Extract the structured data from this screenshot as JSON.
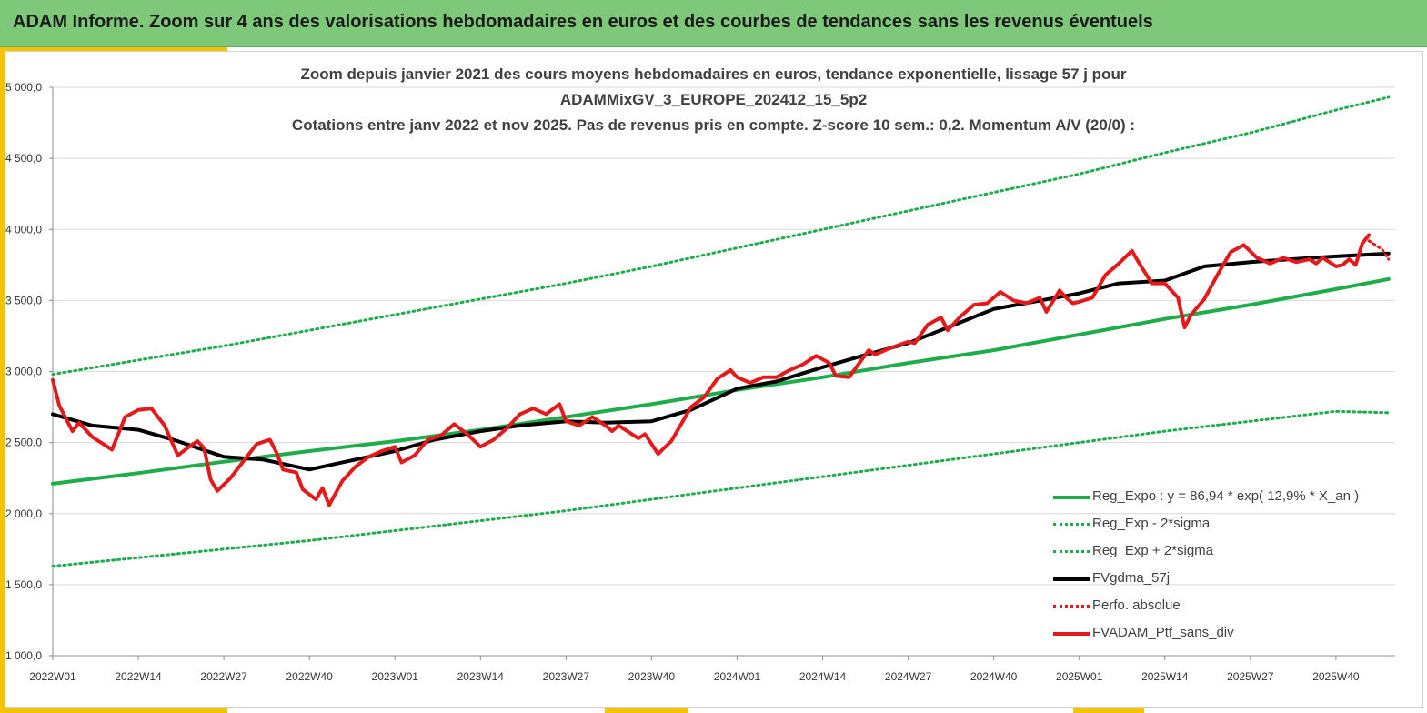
{
  "header": {
    "title": "ADAM Informe. Zoom sur 4 ans des valorisations hebdomadaires en euros et des courbes de tendances sans les revenus éventuels"
  },
  "colors": {
    "header_bg": "#7ec87a",
    "accent": "#f5c400",
    "reg_expo": "#1fad4b",
    "fvgdma": "#000000",
    "ptf": "#e41a1a"
  },
  "chart_data": {
    "type": "line",
    "title_lines": [
      "Zoom depuis janvier 2021 des cours moyens hebdomadaires  en euros, tendance exponentielle, lissage 57 j pour",
      "ADAMMixGV_3_EUROPE_202412_15_5p2",
      "Cotations entre janv 2022 et nov 2025. Pas de revenus pris en compte. Z-score 10 sem.: 0,2. Momentum A/V (20/0) :"
    ],
    "x_tick_labels": [
      "2022W01",
      "2022W14",
      "2022W27",
      "2022W40",
      "2023W01",
      "2023W14",
      "2023W27",
      "2023W40",
      "2024W01",
      "2024W14",
      "2024W27",
      "2024W40",
      "2025W01",
      "2025W14",
      "2025W27",
      "2025W40"
    ],
    "y_tick_labels": [
      "1 000,0",
      "1 500,0",
      "2 000,0",
      "2 500,0",
      "3 000,0",
      "3 500,0",
      "4 000,0",
      "4 500,0",
      "5 000,0"
    ],
    "y_ticks": [
      1000,
      1500,
      2000,
      2500,
      3000,
      3500,
      4000,
      4500,
      5000
    ],
    "ylim": [
      1000,
      5000
    ],
    "grid": "horizontal",
    "legend_position": "bottom-right",
    "series": [
      {
        "name": "Reg_Expo : y = 86,94 * exp( 12,9% *  X_an )",
        "style": "solid",
        "color": "#1fad4b",
        "points": [
          [
            "2022W01",
            2210
          ],
          [
            "2022W14",
            2285
          ],
          [
            "2022W27",
            2365
          ],
          [
            "2022W40",
            2440
          ],
          [
            "2023W01",
            2510
          ],
          [
            "2023W14",
            2590
          ],
          [
            "2023W27",
            2680
          ],
          [
            "2023W40",
            2770
          ],
          [
            "2024W01",
            2870
          ],
          [
            "2024W14",
            2960
          ],
          [
            "2024W27",
            3060
          ],
          [
            "2024W40",
            3150
          ],
          [
            "2025W01",
            3260
          ],
          [
            "2025W14",
            3370
          ],
          [
            "2025W27",
            3470
          ],
          [
            "2025W40",
            3580
          ],
          [
            "2025W48",
            3650
          ]
        ]
      },
      {
        "name": "Reg_Exp - 2*sigma",
        "style": "dotted",
        "color": "#1fad4b",
        "points": [
          [
            "2022W01",
            1630
          ],
          [
            "2022W14",
            1690
          ],
          [
            "2022W27",
            1750
          ],
          [
            "2022W40",
            1810
          ],
          [
            "2023W01",
            1880
          ],
          [
            "2023W14",
            1950
          ],
          [
            "2023W27",
            2020
          ],
          [
            "2023W40",
            2100
          ],
          [
            "2024W01",
            2180
          ],
          [
            "2024W14",
            2260
          ],
          [
            "2024W27",
            2340
          ],
          [
            "2024W40",
            2420
          ],
          [
            "2025W01",
            2500
          ],
          [
            "2025W14",
            2580
          ],
          [
            "2025W27",
            2650
          ],
          [
            "2025W40",
            2720
          ],
          [
            "2025W48",
            2710
          ]
        ]
      },
      {
        "name": "Reg_Exp + 2*sigma",
        "style": "dotted",
        "color": "#1fad4b",
        "points": [
          [
            "2022W01",
            2980
          ],
          [
            "2022W14",
            3080
          ],
          [
            "2022W27",
            3180
          ],
          [
            "2022W40",
            3290
          ],
          [
            "2023W01",
            3400
          ],
          [
            "2023W14",
            3510
          ],
          [
            "2023W27",
            3620
          ],
          [
            "2023W40",
            3740
          ],
          [
            "2024W01",
            3870
          ],
          [
            "2024W14",
            4000
          ],
          [
            "2024W27",
            4130
          ],
          [
            "2024W40",
            4260
          ],
          [
            "2025W01",
            4390
          ],
          [
            "2025W14",
            4540
          ],
          [
            "2025W27",
            4680
          ],
          [
            "2025W40",
            4840
          ],
          [
            "2025W48",
            4930
          ]
        ]
      },
      {
        "name": "FVgdma_57j",
        "style": "solid",
        "color": "#000000",
        "points": [
          [
            "2022W01",
            2700
          ],
          [
            "2022W07",
            2620
          ],
          [
            "2022W14",
            2590
          ],
          [
            "2022W20",
            2510
          ],
          [
            "2022W27",
            2400
          ],
          [
            "2022W33",
            2380
          ],
          [
            "2022W40",
            2310
          ],
          [
            "2022W46",
            2370
          ],
          [
            "2023W01",
            2440
          ],
          [
            "2023W07",
            2520
          ],
          [
            "2023W14",
            2580
          ],
          [
            "2023W20",
            2620
          ],
          [
            "2023W27",
            2650
          ],
          [
            "2023W33",
            2640
          ],
          [
            "2023W40",
            2650
          ],
          [
            "2023W46",
            2730
          ],
          [
            "2024W01",
            2880
          ],
          [
            "2024W07",
            2930
          ],
          [
            "2024W14",
            3030
          ],
          [
            "2024W20",
            3110
          ],
          [
            "2024W27",
            3200
          ],
          [
            "2024W33",
            3310
          ],
          [
            "2024W40",
            3440
          ],
          [
            "2024W46",
            3490
          ],
          [
            "2025W01",
            3550
          ],
          [
            "2025W07",
            3620
          ],
          [
            "2025W14",
            3640
          ],
          [
            "2025W20",
            3740
          ],
          [
            "2025W27",
            3770
          ],
          [
            "2025W33",
            3790
          ],
          [
            "2025W40",
            3810
          ],
          [
            "2025W48",
            3830
          ]
        ]
      },
      {
        "name": "Perfo. absolue",
        "style": "dotted",
        "color": "#e41a1a",
        "points": [
          [
            "2025W45",
            3920
          ],
          [
            "2025W46",
            3890
          ],
          [
            "2025W47",
            3860
          ],
          [
            "2025W48",
            3790
          ]
        ]
      },
      {
        "name": "FVADAM_Ptf_sans_div",
        "style": "solid",
        "color": "#e41a1a",
        "points": [
          [
            "2022W01",
            2940
          ],
          [
            "2022W02",
            2760
          ],
          [
            "2022W04",
            2580
          ],
          [
            "2022W05",
            2640
          ],
          [
            "2022W07",
            2540
          ],
          [
            "2022W10",
            2450
          ],
          [
            "2022W12",
            2680
          ],
          [
            "2022W14",
            2730
          ],
          [
            "2022W16",
            2740
          ],
          [
            "2022W18",
            2620
          ],
          [
            "2022W20",
            2410
          ],
          [
            "2022W22",
            2480
          ],
          [
            "2022W23",
            2510
          ],
          [
            "2022W24",
            2460
          ],
          [
            "2022W25",
            2240
          ],
          [
            "2022W26",
            2160
          ],
          [
            "2022W28",
            2250
          ],
          [
            "2022W30",
            2370
          ],
          [
            "2022W32",
            2490
          ],
          [
            "2022W34",
            2520
          ],
          [
            "2022W35",
            2430
          ],
          [
            "2022W36",
            2310
          ],
          [
            "2022W38",
            2290
          ],
          [
            "2022W39",
            2170
          ],
          [
            "2022W41",
            2100
          ],
          [
            "2022W42",
            2180
          ],
          [
            "2022W43",
            2060
          ],
          [
            "2022W45",
            2230
          ],
          [
            "2022W47",
            2330
          ],
          [
            "2022W49",
            2400
          ],
          [
            "2022W51",
            2440
          ],
          [
            "2023W01",
            2470
          ],
          [
            "2023W02",
            2360
          ],
          [
            "2023W04",
            2410
          ],
          [
            "2023W06",
            2520
          ],
          [
            "2023W08",
            2550
          ],
          [
            "2023W10",
            2630
          ],
          [
            "2023W12",
            2560
          ],
          [
            "2023W14",
            2470
          ],
          [
            "2023W16",
            2520
          ],
          [
            "2023W18",
            2600
          ],
          [
            "2023W20",
            2700
          ],
          [
            "2023W22",
            2740
          ],
          [
            "2023W24",
            2700
          ],
          [
            "2023W26",
            2770
          ],
          [
            "2023W27",
            2650
          ],
          [
            "2023W29",
            2620
          ],
          [
            "2023W31",
            2680
          ],
          [
            "2023W33",
            2620
          ],
          [
            "2023W34",
            2580
          ],
          [
            "2023W35",
            2620
          ],
          [
            "2023W37",
            2560
          ],
          [
            "2023W38",
            2530
          ],
          [
            "2023W39",
            2560
          ],
          [
            "2023W41",
            2420
          ],
          [
            "2023W43",
            2510
          ],
          [
            "2023W46",
            2750
          ],
          [
            "2023W48",
            2820
          ],
          [
            "2023W50",
            2950
          ],
          [
            "2023W52",
            3010
          ],
          [
            "2024W01",
            2960
          ],
          [
            "2024W03",
            2920
          ],
          [
            "2024W05",
            2960
          ],
          [
            "2024W07",
            2960
          ],
          [
            "2024W09",
            3010
          ],
          [
            "2024W11",
            3050
          ],
          [
            "2024W13",
            3110
          ],
          [
            "2024W15",
            3060
          ],
          [
            "2024W16",
            2970
          ],
          [
            "2024W18",
            2960
          ],
          [
            "2024W21",
            3150
          ],
          [
            "2024W22",
            3120
          ],
          [
            "2024W24",
            3160
          ],
          [
            "2024W27",
            3210
          ],
          [
            "2024W28",
            3200
          ],
          [
            "2024W30",
            3330
          ],
          [
            "2024W32",
            3380
          ],
          [
            "2024W33",
            3290
          ],
          [
            "2024W35",
            3390
          ],
          [
            "2024W37",
            3470
          ],
          [
            "2024W39",
            3480
          ],
          [
            "2024W41",
            3560
          ],
          [
            "2024W43",
            3500
          ],
          [
            "2024W45",
            3480
          ],
          [
            "2024W47",
            3520
          ],
          [
            "2024W48",
            3420
          ],
          [
            "2024W50",
            3570
          ],
          [
            "2024W51",
            3520
          ],
          [
            "2024W52",
            3480
          ],
          [
            "2025W01",
            3490
          ],
          [
            "2025W03",
            3520
          ],
          [
            "2025W05",
            3680
          ],
          [
            "2025W07",
            3760
          ],
          [
            "2025W09",
            3850
          ],
          [
            "2025W10",
            3770
          ],
          [
            "2025W12",
            3620
          ],
          [
            "2025W14",
            3620
          ],
          [
            "2025W16",
            3520
          ],
          [
            "2025W17",
            3310
          ],
          [
            "2025W18",
            3400
          ],
          [
            "2025W20",
            3510
          ],
          [
            "2025W22",
            3680
          ],
          [
            "2025W24",
            3840
          ],
          [
            "2025W26",
            3890
          ],
          [
            "2025W28",
            3800
          ],
          [
            "2025W30",
            3760
          ],
          [
            "2025W32",
            3800
          ],
          [
            "2025W34",
            3770
          ],
          [
            "2025W36",
            3790
          ],
          [
            "2025W37",
            3760
          ],
          [
            "2025W38",
            3800
          ],
          [
            "2025W40",
            3740
          ],
          [
            "2025W41",
            3750
          ],
          [
            "2025W42",
            3790
          ],
          [
            "2025W43",
            3750
          ],
          [
            "2025W44",
            3900
          ],
          [
            "2025W45",
            3960
          ]
        ]
      }
    ]
  }
}
